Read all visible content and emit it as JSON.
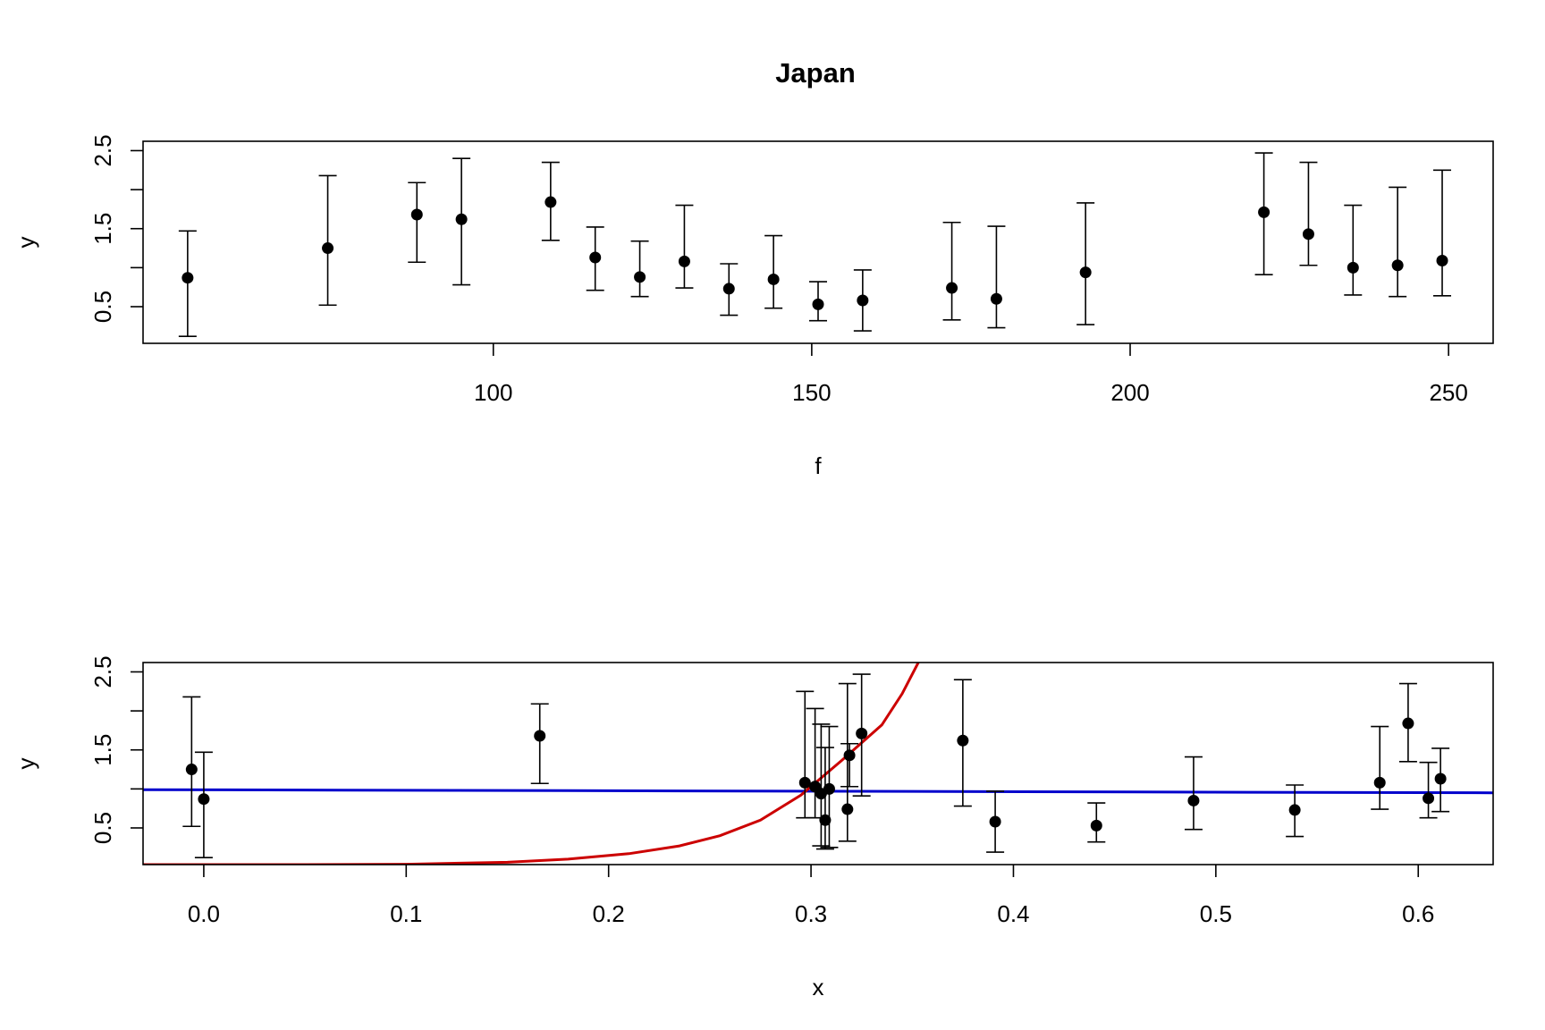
{
  "chart_data": [
    {
      "type": "scatter",
      "title": "Japan",
      "xlabel": "f",
      "ylabel": "y",
      "xlim": [
        45,
        257
      ],
      "ylim": [
        0.03,
        2.62
      ],
      "xticks": [
        100,
        150,
        200,
        250
      ],
      "yticks": [
        0.5,
        1.5,
        2.5
      ],
      "ytick_labels_shown": [
        "0.5",
        "1.5",
        "2.5"
      ],
      "yticks_minor": [
        1.0,
        2.0
      ],
      "grid": false,
      "points": [
        {
          "x": 52,
          "y": 0.87,
          "lo": 0.12,
          "hi": 1.47
        },
        {
          "x": 74,
          "y": 1.25,
          "lo": 0.52,
          "hi": 2.18
        },
        {
          "x": 88,
          "y": 1.68,
          "lo": 1.07,
          "hi": 2.09
        },
        {
          "x": 95,
          "y": 1.62,
          "lo": 0.78,
          "hi": 2.4
        },
        {
          "x": 109,
          "y": 1.84,
          "lo": 1.35,
          "hi": 2.35
        },
        {
          "x": 116,
          "y": 1.13,
          "lo": 0.71,
          "hi": 1.52
        },
        {
          "x": 123,
          "y": 0.88,
          "lo": 0.63,
          "hi": 1.34
        },
        {
          "x": 130,
          "y": 1.08,
          "lo": 0.74,
          "hi": 1.8
        },
        {
          "x": 137,
          "y": 0.73,
          "lo": 0.39,
          "hi": 1.05
        },
        {
          "x": 144,
          "y": 0.85,
          "lo": 0.48,
          "hi": 1.41
        },
        {
          "x": 151,
          "y": 0.53,
          "lo": 0.32,
          "hi": 0.82
        },
        {
          "x": 158,
          "y": 0.58,
          "lo": 0.19,
          "hi": 0.97
        },
        {
          "x": 172,
          "y": 0.74,
          "lo": 0.33,
          "hi": 1.58
        },
        {
          "x": 179,
          "y": 0.6,
          "lo": 0.23,
          "hi": 1.53
        },
        {
          "x": 193,
          "y": 0.94,
          "lo": 0.27,
          "hi": 1.83
        },
        {
          "x": 221,
          "y": 1.71,
          "lo": 0.91,
          "hi": 2.47
        },
        {
          "x": 228,
          "y": 1.43,
          "lo": 1.03,
          "hi": 2.35
        },
        {
          "x": 235,
          "y": 1.0,
          "lo": 0.65,
          "hi": 1.8
        },
        {
          "x": 242,
          "y": 1.03,
          "lo": 0.63,
          "hi": 2.03
        },
        {
          "x": 249,
          "y": 1.09,
          "lo": 0.64,
          "hi": 2.25
        }
      ]
    },
    {
      "type": "scatter",
      "title": "",
      "xlabel": "x",
      "ylabel": "y",
      "xlim": [
        -0.03,
        0.637
      ],
      "ylim": [
        0.03,
        2.62
      ],
      "xticks": [
        0.0,
        0.1,
        0.2,
        0.3,
        0.4,
        0.5,
        0.6
      ],
      "xtick_labels": [
        "0.0",
        "0.1",
        "0.2",
        "0.3",
        "0.4",
        "0.5",
        "0.6"
      ],
      "yticks": [
        0.5,
        1.5,
        2.5
      ],
      "ytick_labels_shown": [
        "0.5",
        "1.5",
        "2.5"
      ],
      "yticks_minor": [
        1.0,
        2.0
      ],
      "grid": false,
      "points": [
        {
          "x": -0.006,
          "y": 1.25,
          "lo": 0.52,
          "hi": 2.18
        },
        {
          "x": 0.0,
          "y": 0.87,
          "lo": 0.12,
          "hi": 1.47
        },
        {
          "x": 0.166,
          "y": 1.68,
          "lo": 1.07,
          "hi": 2.09
        },
        {
          "x": 0.297,
          "y": 1.08,
          "lo": 0.63,
          "hi": 2.25
        },
        {
          "x": 0.302,
          "y": 1.03,
          "lo": 0.63,
          "hi": 2.03
        },
        {
          "x": 0.305,
          "y": 0.94,
          "lo": 0.27,
          "hi": 1.83
        },
        {
          "x": 0.307,
          "y": 0.6,
          "lo": 0.23,
          "hi": 1.53
        },
        {
          "x": 0.309,
          "y": 1.0,
          "lo": 0.25,
          "hi": 1.8
        },
        {
          "x": 0.318,
          "y": 0.74,
          "lo": 0.33,
          "hi": 2.35
        },
        {
          "x": 0.319,
          "y": 1.43,
          "lo": 1.03,
          "hi": 1.58
        },
        {
          "x": 0.325,
          "y": 1.71,
          "lo": 0.91,
          "hi": 2.47
        },
        {
          "x": 0.375,
          "y": 1.62,
          "lo": 0.78,
          "hi": 2.4
        },
        {
          "x": 0.391,
          "y": 0.58,
          "lo": 0.19,
          "hi": 0.97
        },
        {
          "x": 0.441,
          "y": 0.53,
          "lo": 0.32,
          "hi": 0.82
        },
        {
          "x": 0.489,
          "y": 0.85,
          "lo": 0.48,
          "hi": 1.41
        },
        {
          "x": 0.539,
          "y": 0.73,
          "lo": 0.39,
          "hi": 1.05
        },
        {
          "x": 0.581,
          "y": 1.08,
          "lo": 0.74,
          "hi": 1.8
        },
        {
          "x": 0.595,
          "y": 1.84,
          "lo": 1.35,
          "hi": 2.35
        },
        {
          "x": 0.605,
          "y": 0.88,
          "lo": 0.63,
          "hi": 1.34
        },
        {
          "x": 0.611,
          "y": 1.13,
          "lo": 0.71,
          "hi": 1.52
        }
      ],
      "lines": [
        {
          "color": "#0000cc",
          "points": [
            [
              -0.03,
              0.99
            ],
            [
              0.637,
              0.95
            ]
          ]
        },
        {
          "color": "#cc0000",
          "points": [
            [
              -0.03,
              0.03
            ],
            [
              0.05,
              0.03
            ],
            [
              0.1,
              0.035
            ],
            [
              0.15,
              0.06
            ],
            [
              0.18,
              0.1
            ],
            [
              0.21,
              0.17
            ],
            [
              0.235,
              0.27
            ],
            [
              0.255,
              0.4
            ],
            [
              0.275,
              0.6
            ],
            [
              0.295,
              0.92
            ],
            [
              0.315,
              1.36
            ],
            [
              0.335,
              1.82
            ],
            [
              0.345,
              2.22
            ],
            [
              0.353,
              2.62
            ]
          ]
        }
      ]
    }
  ]
}
